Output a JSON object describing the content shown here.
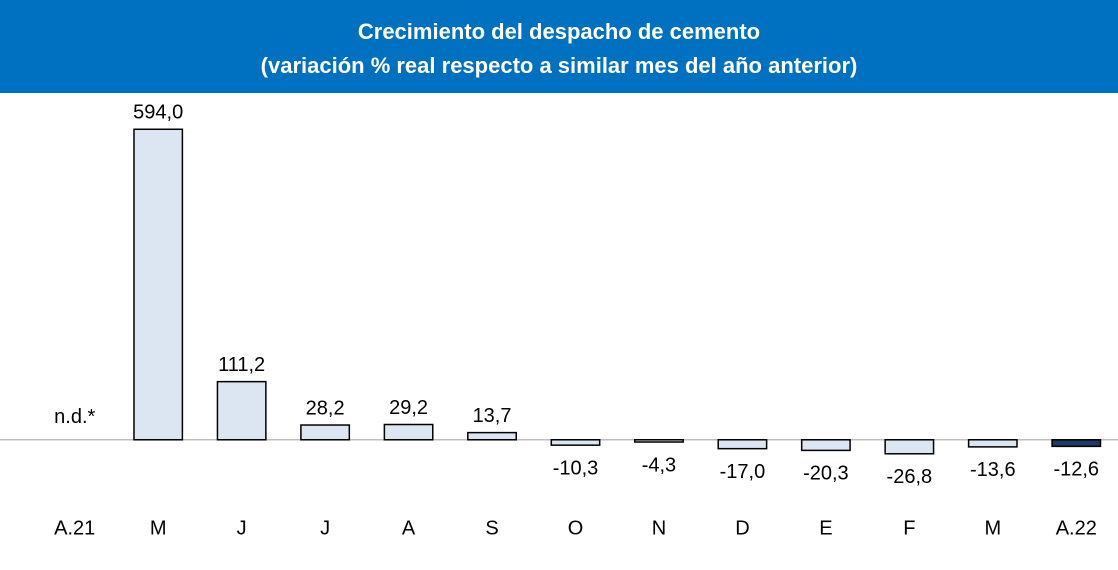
{
  "chart_data": {
    "type": "bar",
    "title": "Crecimiento del despacho de cemento",
    "subtitle": "(variación % real respecto a similar mes del año anterior)",
    "categories": [
      "A.21",
      "M",
      "J",
      "J",
      "A",
      "S",
      "O",
      "N",
      "D",
      "E",
      "F",
      "M",
      "A.22"
    ],
    "values": [
      null,
      594.0,
      111.2,
      28.2,
      29.2,
      13.7,
      -10.3,
      -4.3,
      -17.0,
      -20.3,
      -26.8,
      -13.6,
      -12.6
    ],
    "value_labels": [
      "n.d.*",
      "594,0",
      "111,2",
      "28,2",
      "29,2",
      "13,7",
      "-10,3",
      "-4,3",
      "-17,0",
      "-20,3",
      "-26,8",
      "-13,6",
      "-12,6"
    ],
    "colors": [
      "#dce6f2",
      "#dce6f2",
      "#dce6f2",
      "#dce6f2",
      "#dce6f2",
      "#dce6f2",
      "#dce6f2",
      "#dce6f2",
      "#dce6f2",
      "#dce6f2",
      "#dce6f2",
      "#dce6f2",
      "#1f3864"
    ],
    "ylim": [
      -230,
      650
    ]
  }
}
